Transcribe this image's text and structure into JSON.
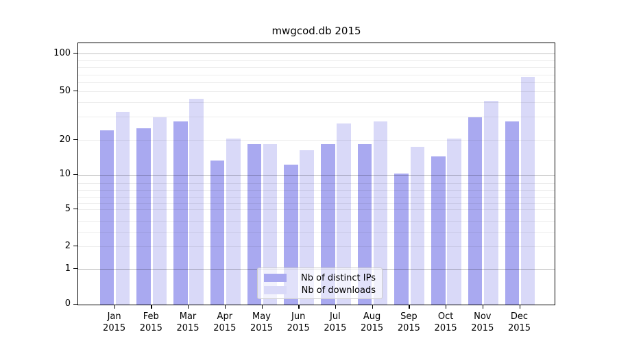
{
  "title": "mwgcod.db 2015",
  "y_axis": {
    "tick_labels": [
      "100",
      "50",
      "20",
      "10",
      "5",
      "2",
      "1",
      "0"
    ],
    "tick_values": [
      100,
      50,
      20,
      10,
      5,
      2,
      1,
      0
    ]
  },
  "x_axis": {
    "months": [
      "Jan",
      "Feb",
      "Mar",
      "Apr",
      "May",
      "Jun",
      "Jul",
      "Aug",
      "Sep",
      "Oct",
      "Nov",
      "Dec"
    ],
    "year": "2015"
  },
  "legend": {
    "entries": [
      {
        "label": "Nb of distinct IPs",
        "color": "#a9a9f0"
      },
      {
        "label": "Nb of downloads",
        "color": "#d9d9f8"
      }
    ]
  },
  "colors": {
    "bar_distinct_ips": "#a9a9f0",
    "bar_downloads": "#d9d9f8",
    "axis": "#000000"
  },
  "chart_data": {
    "type": "bar",
    "title": "mwgcod.db 2015",
    "categories": [
      "Jan 2015",
      "Feb 2015",
      "Mar 2015",
      "Apr 2015",
      "May 2015",
      "Jun 2015",
      "Jul 2015",
      "Aug 2015",
      "Sep 2015",
      "Oct 2015",
      "Nov 2015",
      "Dec 2015"
    ],
    "series": [
      {
        "name": "Nb of distinct IPs",
        "color": "#a9a9f0",
        "values": [
          23,
          24,
          27,
          13,
          18,
          12,
          18,
          18,
          10,
          14,
          29,
          27
        ]
      },
      {
        "name": "Nb of downloads",
        "color": "#d9d9f8",
        "values": [
          32,
          29,
          42,
          20,
          18,
          16,
          26,
          27,
          17,
          20,
          40,
          65
        ]
      }
    ],
    "xlabel": "",
    "ylabel": "",
    "yscale": "log-like (compressed log1p)",
    "ylim": [
      0,
      130
    ],
    "y_ticks": [
      0,
      1,
      2,
      5,
      10,
      20,
      50,
      100
    ],
    "grid": "horizontal, minor gridlines at 2-9 and 20-90, major at 1/10/100",
    "legend_position": "bottom-center inside plot"
  }
}
